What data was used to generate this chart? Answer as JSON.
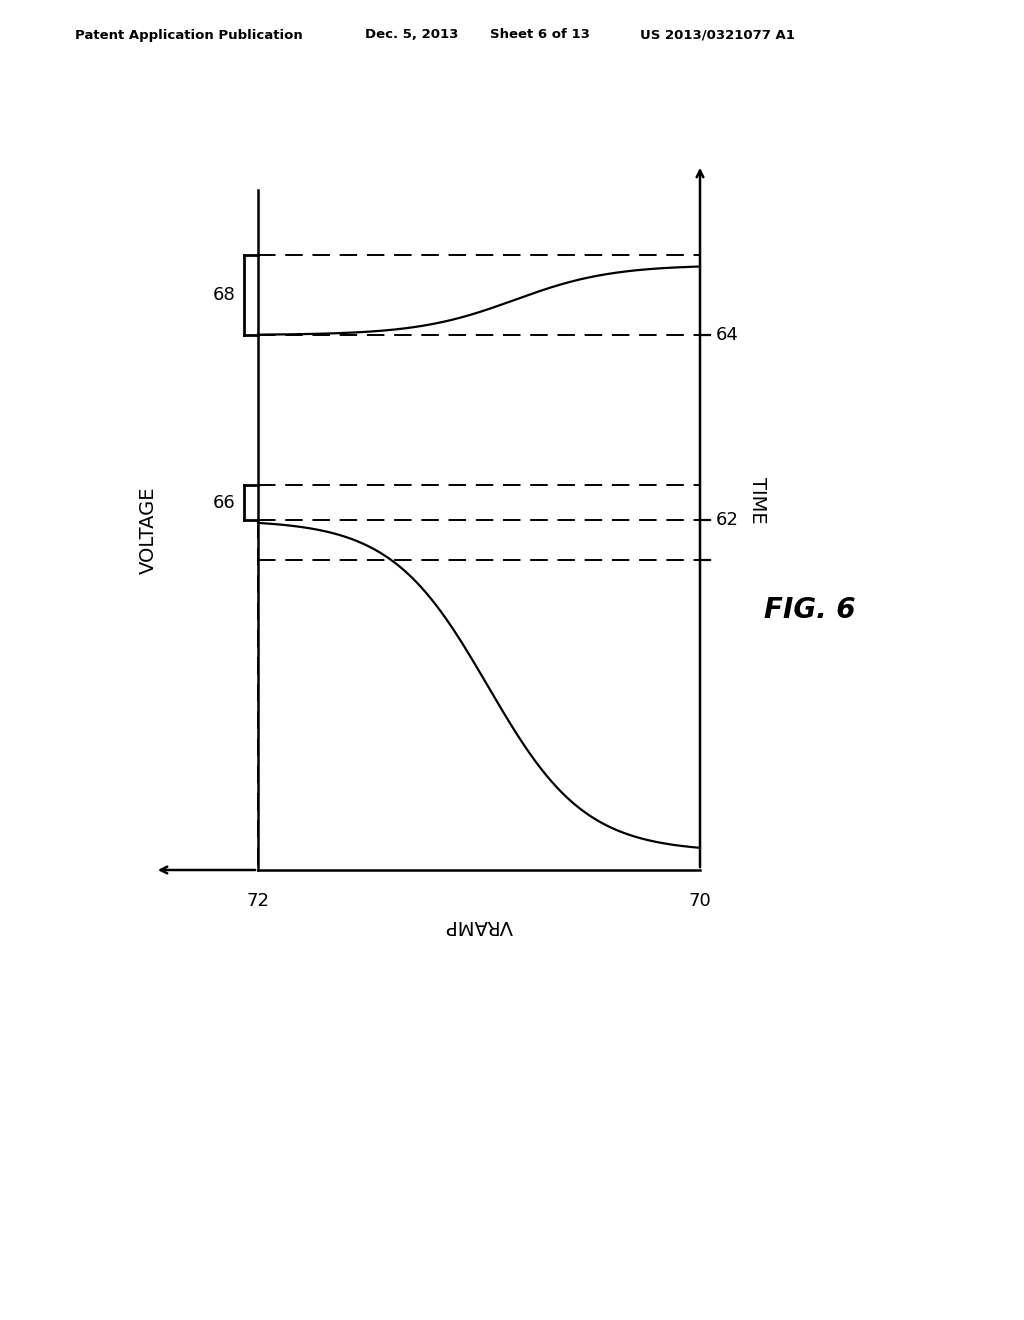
{
  "header_left": "Patent Application Publication",
  "header_mid": "Dec. 5, 2013",
  "header_sheet": "Sheet 6 of 13",
  "header_right": "US 2013/0321077 A1",
  "fig_label": "FIG. 6",
  "time_label": "TIME",
  "voltage_label": "VOLTAGE",
  "vramp_label": "VRAMP",
  "label_62": "62",
  "label_64": "64",
  "label_66": "66",
  "label_68": "68",
  "label_70": "70",
  "label_72": "72",
  "background_color": "#ffffff",
  "line_color": "#000000"
}
